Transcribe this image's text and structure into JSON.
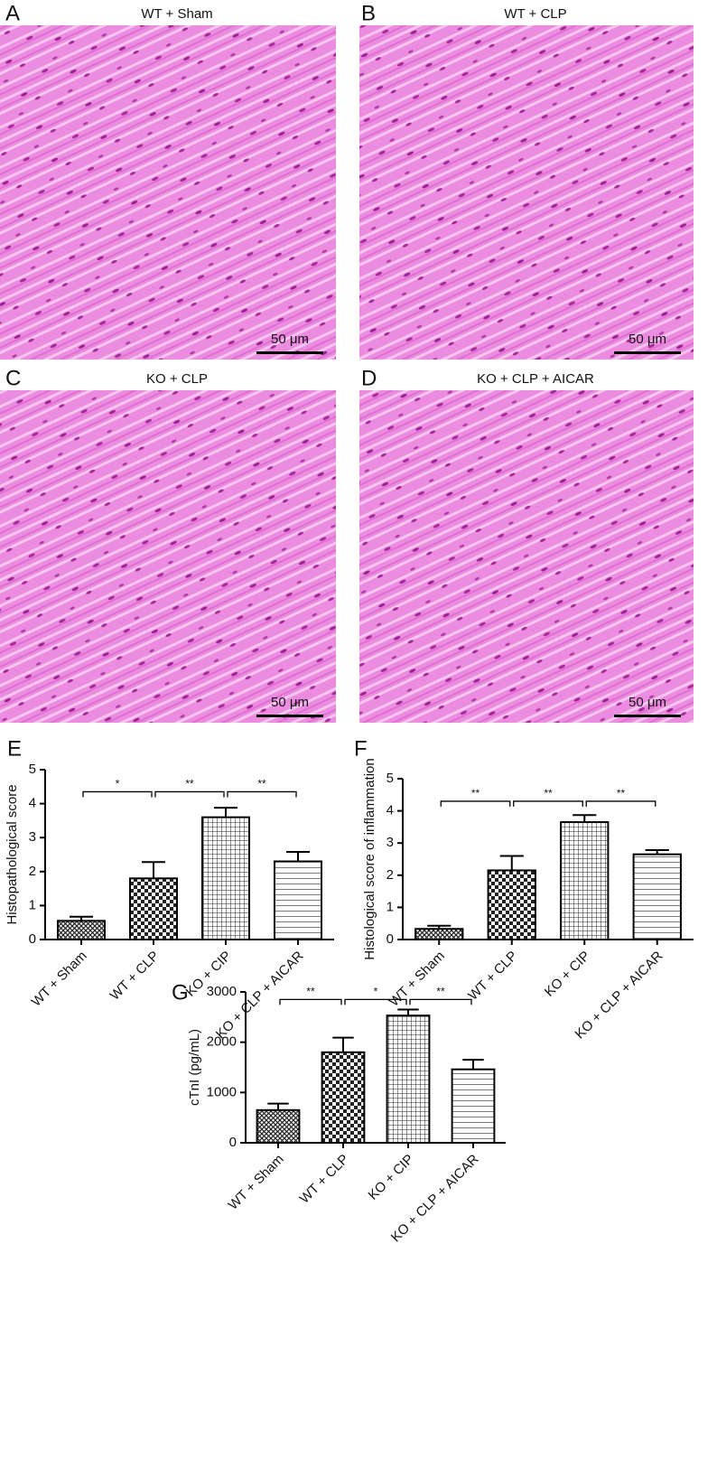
{
  "images": [
    {
      "letter": "A",
      "title": "WT + Sham",
      "scale_bar": "50 μm"
    },
    {
      "letter": "B",
      "title": "WT + CLP",
      "scale_bar": "50 μm"
    },
    {
      "letter": "C",
      "title": "KO + CLP",
      "scale_bar": "50 μm"
    },
    {
      "letter": "D",
      "title": "KO + CLP + AICAR",
      "scale_bar": "50 μm"
    }
  ],
  "chart_data": [
    {
      "type": "bar",
      "label": "E",
      "y_label": "Histopathological score",
      "categories": [
        "WT + Sham",
        "WT + CLP",
        "KO + CIP",
        "KO + CLP + AICAR"
      ],
      "values": [
        0.55,
        1.8,
        3.6,
        2.3
      ],
      "errors": [
        0.12,
        0.48,
        0.28,
        0.28
      ],
      "ylim": [
        0,
        5
      ],
      "yticks": [
        0,
        1,
        2,
        3,
        4,
        5
      ],
      "annotations": [
        {
          "label": "*",
          "between": [
            0,
            1
          ],
          "y": 4.35
        },
        {
          "label": "**",
          "between": [
            1,
            2
          ],
          "y": 4.35
        },
        {
          "label": "**",
          "between": [
            2,
            3
          ],
          "y": 4.35
        }
      ]
    },
    {
      "type": "bar",
      "label": "F",
      "y_label": "Histological score of inflammation",
      "categories": [
        "WT + Sham",
        "WT + CLP",
        "KO + CIP",
        "KO + CLP + AICAR"
      ],
      "values": [
        0.33,
        2.15,
        3.65,
        2.65
      ],
      "errors": [
        0.1,
        0.45,
        0.22,
        0.13
      ],
      "ylim": [
        0,
        5
      ],
      "yticks": [
        0,
        1,
        2,
        3,
        4,
        5
      ],
      "annotations": [
        {
          "label": "**",
          "between": [
            0,
            1
          ],
          "y": 4.3
        },
        {
          "label": "**",
          "between": [
            1,
            2
          ],
          "y": 4.3
        },
        {
          "label": "**",
          "between": [
            2,
            3
          ],
          "y": 4.3
        }
      ]
    },
    {
      "type": "bar",
      "label": "G",
      "y_label": "cTnI (pg/mL)",
      "categories": [
        "WT + Sham",
        "WT + CLP",
        "KO + CIP",
        "KO + CLP + AICAR"
      ],
      "values": [
        650,
        1800,
        2530,
        1460
      ],
      "errors": [
        130,
        290,
        120,
        190
      ],
      "ylim": [
        0,
        3000
      ],
      "yticks": [
        0,
        1000,
        2000,
        3000
      ],
      "annotations": [
        {
          "label": "**",
          "between": [
            0,
            1
          ],
          "y": 2850
        },
        {
          "label": "*",
          "between": [
            1,
            2
          ],
          "y": 2850
        },
        {
          "label": "**",
          "between": [
            2,
            3
          ],
          "y": 2850
        }
      ]
    }
  ]
}
